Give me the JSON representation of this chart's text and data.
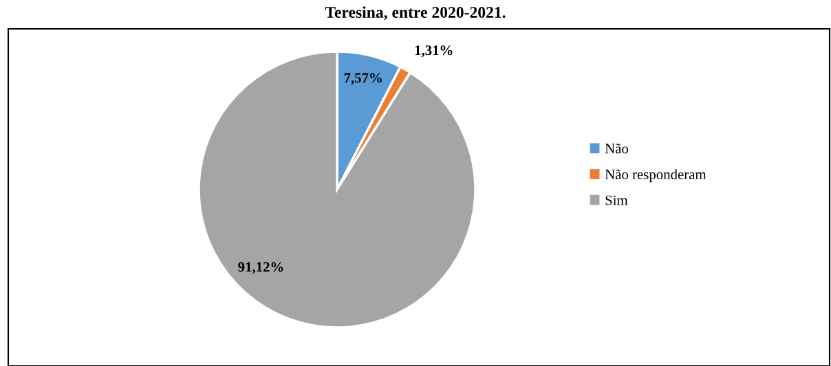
{
  "chart_data": {
    "type": "pie",
    "title": "Teresina, entre 2020-2021.",
    "categories": [
      "Não",
      "Não responderam",
      "Sim"
    ],
    "values": [
      7.57,
      1.31,
      91.12
    ],
    "colors": [
      "#5b9bd5",
      "#ed7d31",
      "#a5a5a5"
    ],
    "value_labels": [
      "7,57%",
      "1,31%",
      "91,12%"
    ],
    "legend": "right"
  }
}
